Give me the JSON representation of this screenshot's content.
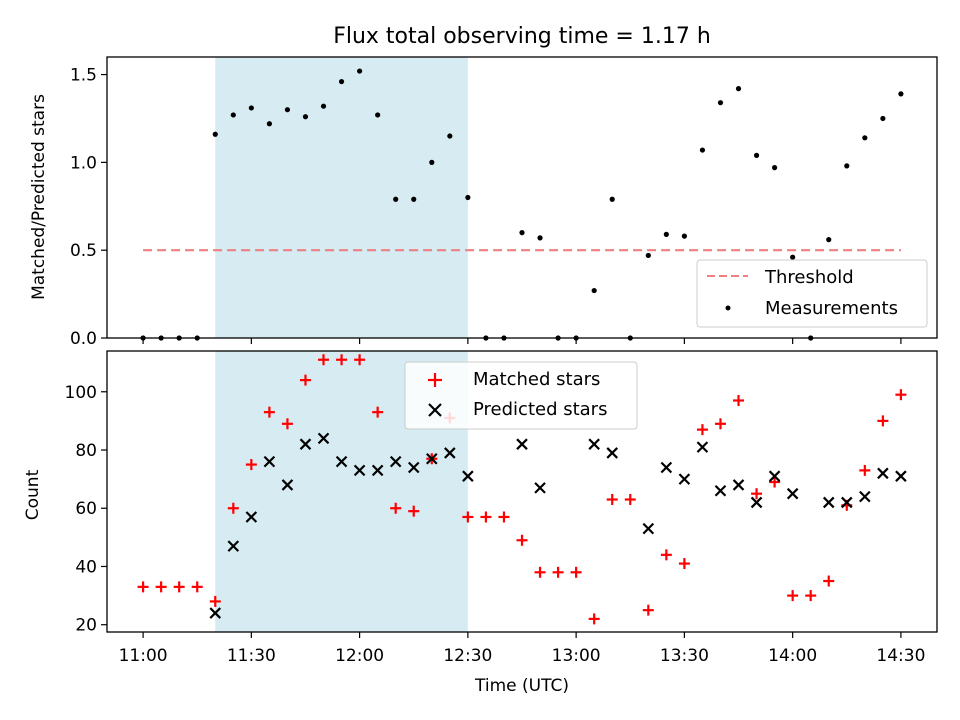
{
  "title": "Flux total observing time = 1.17 h",
  "xlabel": "Time (UTC)",
  "colors": {
    "threshold": "#f08080",
    "measurements": "#000000",
    "matched": "#ff0000",
    "predicted": "#000000",
    "highlight": "#add8e6"
  },
  "chart_data": [
    {
      "type": "scatter",
      "ylabel": "Matched/Predicted stars",
      "xlim": [
        "10:50",
        "14:40"
      ],
      "ylim": [
        0,
        1.6
      ],
      "yticks": [
        "0.0",
        "0.5",
        "1.0",
        "1.5"
      ],
      "xticks": [
        "11:00",
        "11:30",
        "12:00",
        "12:30",
        "13:00",
        "13:30",
        "14:00",
        "14:30"
      ],
      "highlight_span": [
        "11:20",
        "12:30"
      ],
      "legend": {
        "position": "lower right",
        "entries": [
          "Threshold",
          "Measurements"
        ]
      },
      "series": [
        {
          "name": "Threshold",
          "style": "dashed-line",
          "x": [
            "11:00",
            "14:30"
          ],
          "y": [
            0.5,
            0.5
          ]
        },
        {
          "name": "Measurements",
          "style": "dot",
          "x": [
            "11:00",
            "11:05",
            "11:10",
            "11:15",
            "11:20",
            "11:25",
            "11:30",
            "11:35",
            "11:40",
            "11:45",
            "11:50",
            "11:55",
            "12:00",
            "12:05",
            "12:10",
            "12:15",
            "12:20",
            "12:25",
            "12:30",
            "12:35",
            "12:40",
            "12:45",
            "12:50",
            "12:55",
            "13:00",
            "13:05",
            "13:10",
            "13:15",
            "13:20",
            "13:25",
            "13:30",
            "13:35",
            "13:40",
            "13:45",
            "13:50",
            "13:55",
            "14:00",
            "14:05",
            "14:10",
            "14:15",
            "14:20",
            "14:25",
            "14:30"
          ],
          "y": [
            0.0,
            0.0,
            0.0,
            0.0,
            1.16,
            1.27,
            1.31,
            1.22,
            1.3,
            1.26,
            1.32,
            1.46,
            1.52,
            1.27,
            0.79,
            0.79,
            1.0,
            1.15,
            0.8,
            0.0,
            0.0,
            0.6,
            0.57,
            0.0,
            0.0,
            0.27,
            0.79,
            0.0,
            0.47,
            0.59,
            0.58,
            1.07,
            1.34,
            1.42,
            1.04,
            0.97,
            0.46,
            0.0,
            0.56,
            0.98,
            1.14,
            1.25,
            1.39
          ]
        }
      ]
    },
    {
      "type": "scatter",
      "ylabel": "Count",
      "xlim": [
        "10:50",
        "14:40"
      ],
      "ylim": [
        17.5,
        114
      ],
      "yticks": [
        "20",
        "40",
        "60",
        "80",
        "100"
      ],
      "xticks": [
        "11:00",
        "11:30",
        "12:00",
        "12:30",
        "13:00",
        "13:30",
        "14:00",
        "14:30"
      ],
      "highlight_span": [
        "11:20",
        "12:30"
      ],
      "legend": {
        "position": "upper center",
        "entries": [
          "Matched stars",
          "Predicted stars"
        ]
      },
      "series": [
        {
          "name": "Matched stars",
          "style": "plus",
          "x": [
            "11:00",
            "11:05",
            "11:10",
            "11:15",
            "11:20",
            "11:25",
            "11:30",
            "11:35",
            "11:40",
            "11:45",
            "11:50",
            "11:55",
            "12:00",
            "12:05",
            "12:10",
            "12:15",
            "12:20",
            "12:25",
            "12:30",
            "12:35",
            "12:40",
            "12:45",
            "12:50",
            "12:55",
            "13:00",
            "13:05",
            "13:10",
            "13:15",
            "13:20",
            "13:25",
            "13:30",
            "13:35",
            "13:40",
            "13:45",
            "13:50",
            "13:55",
            "14:00",
            "14:05",
            "14:10",
            "14:15",
            "14:20",
            "14:25",
            "14:30"
          ],
          "y": [
            33,
            33,
            33,
            33,
            28,
            60,
            75,
            93,
            89,
            104,
            111,
            111,
            111,
            93,
            60,
            59,
            77,
            91,
            57,
            57,
            57,
            49,
            38,
            38,
            38,
            22,
            63,
            63,
            25,
            44,
            41,
            87,
            89,
            97,
            65,
            69,
            30,
            30,
            35,
            61,
            73,
            90,
            99
          ]
        },
        {
          "name": "Predicted stars",
          "style": "x",
          "x": [
            "11:20",
            "11:25",
            "11:30",
            "11:35",
            "11:40",
            "11:45",
            "11:50",
            "11:55",
            "12:00",
            "12:05",
            "12:10",
            "12:15",
            "12:20",
            "12:25",
            "12:30",
            "12:45",
            "12:50",
            "13:05",
            "13:10",
            "13:20",
            "13:25",
            "13:30",
            "13:35",
            "13:40",
            "13:45",
            "13:50",
            "13:55",
            "14:00",
            "14:10",
            "14:15",
            "14:20",
            "14:25",
            "14:30"
          ],
          "y": [
            24,
            47,
            57,
            76,
            68,
            82,
            84,
            76,
            73,
            73,
            76,
            74,
            77,
            79,
            71,
            82,
            67,
            82,
            79,
            53,
            74,
            70,
            81,
            66,
            68,
            62,
            71,
            65,
            62,
            62,
            64,
            72,
            71
          ]
        }
      ]
    }
  ]
}
